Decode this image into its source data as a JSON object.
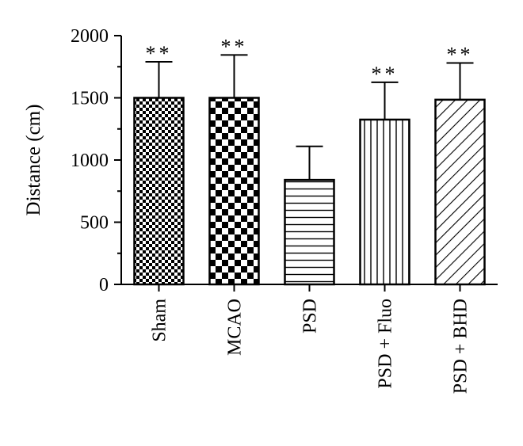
{
  "chart_data": {
    "type": "bar",
    "ylabel": "Distance (cm)",
    "ylim": [
      0,
      2000
    ],
    "yticks": [
      0,
      500,
      1000,
      1500,
      2000
    ],
    "ytick_labels": [
      "0",
      "500",
      "1000",
      "1500",
      "2000"
    ],
    "grid": false,
    "categories": [
      "Sham",
      "MCAO",
      "PSD",
      "PSD + Fluo",
      "PSD + BHD"
    ],
    "values": [
      1500,
      1500,
      840,
      1325,
      1485
    ],
    "errors": [
      290,
      345,
      270,
      300,
      295
    ],
    "significance": [
      "**",
      "**",
      "",
      "**",
      "**"
    ],
    "patterns": [
      "fine-checker",
      "large-checker",
      "horizontal-lines",
      "vertical-lines",
      "diagonal-lines"
    ]
  }
}
